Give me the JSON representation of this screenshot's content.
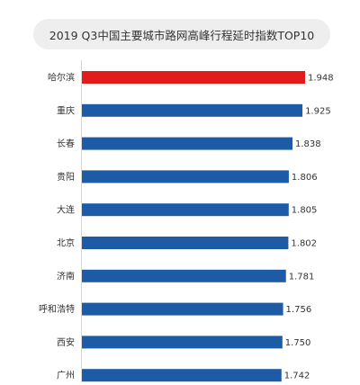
{
  "chart_data": {
    "type": "bar",
    "orientation": "horizontal",
    "title": "2019 Q3中国主要城市路网高峰行程延时指数TOP10",
    "categories": [
      "哈尔滨",
      "重庆",
      "长春",
      "贵阳",
      "大连",
      "北京",
      "济南",
      "呼和浩特",
      "西安",
      "广州"
    ],
    "values": [
      1.948,
      1.925,
      1.838,
      1.806,
      1.805,
      1.802,
      1.781,
      1.756,
      1.75,
      1.742
    ],
    "value_labels": [
      "1.948",
      "1.925",
      "1.838",
      "1.806",
      "1.805",
      "1.802",
      "1.781",
      "1.756",
      "1.750",
      "1.742"
    ],
    "highlight_index": 0,
    "colors": {
      "highlight": "#e31b1b",
      "bar": "#1d5ba7"
    },
    "xlim": [
      0,
      1.948
    ],
    "grid": false,
    "legend": "none"
  }
}
